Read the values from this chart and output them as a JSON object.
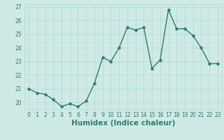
{
  "x": [
    0,
    1,
    2,
    3,
    4,
    5,
    6,
    7,
    8,
    9,
    10,
    11,
    12,
    13,
    14,
    15,
    16,
    17,
    18,
    19,
    20,
    21,
    22,
    23
  ],
  "y": [
    21.0,
    20.7,
    20.6,
    20.2,
    19.7,
    19.9,
    19.7,
    20.1,
    21.4,
    23.3,
    23.0,
    24.0,
    25.5,
    25.3,
    25.5,
    22.5,
    23.1,
    26.8,
    25.4,
    25.4,
    24.9,
    24.0,
    22.85,
    22.85
  ],
  "line_color": "#2d7d6e",
  "marker": "D",
  "markersize": 2.5,
  "linewidth": 1.0,
  "xlabel": "Humidex (Indice chaleur)",
  "xlim": [
    -0.5,
    23.5
  ],
  "ylim": [
    19.5,
    27.2
  ],
  "yticks": [
    20,
    21,
    22,
    23,
    24,
    25,
    26,
    27
  ],
  "xticks": [
    0,
    1,
    2,
    3,
    4,
    5,
    6,
    7,
    8,
    9,
    10,
    11,
    12,
    13,
    14,
    15,
    16,
    17,
    18,
    19,
    20,
    21,
    22,
    23
  ],
  "bg_color": "#ceeae7",
  "grid_color": "#b8d8d5",
  "tick_fontsize": 5.5,
  "xlabel_fontsize": 7.5,
  "tick_color": "#2d7d6e"
}
